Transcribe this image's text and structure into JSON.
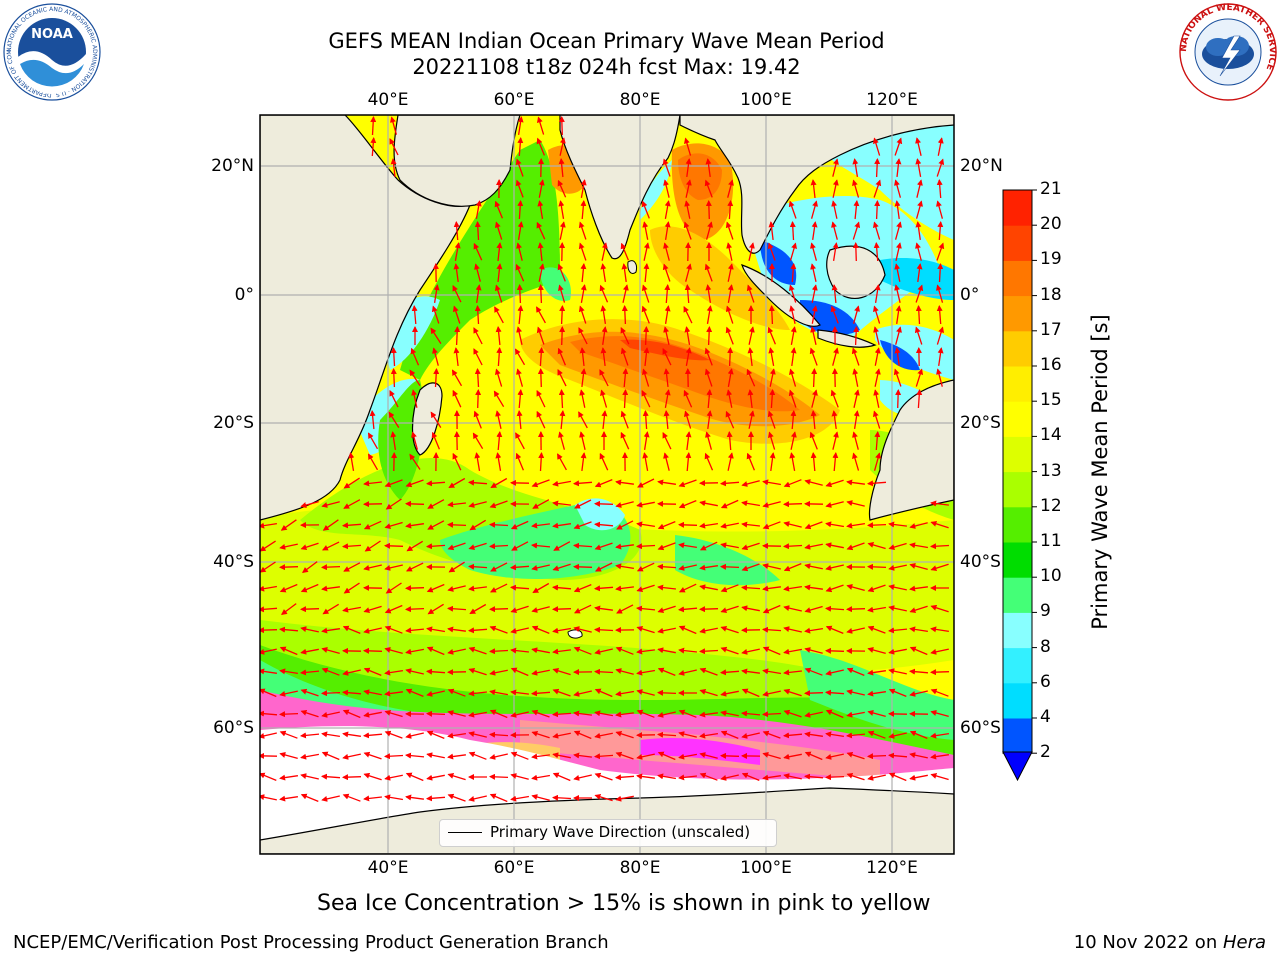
{
  "header": {
    "title_line1": "GEFS MEAN Indian Ocean Primary Wave Mean Period",
    "title_line2": "20221108 t18z 024h fcst   Max: 19.42"
  },
  "logos": {
    "noaa_text": "NOAA",
    "noaa_ring_text": "NATIONAL OCEANIC AND ATMOSPHERIC ADMINISTRATION · U.S. DEPARTMENT OF COMMERCE",
    "nws_ring_text": "NATIONAL WEATHER SERVICE"
  },
  "map": {
    "lon_ticks": [
      "40°E",
      "60°E",
      "80°E",
      "100°E",
      "120°E"
    ],
    "lat_ticks": [
      "20°N",
      "0°",
      "20°S",
      "40°S",
      "60°S"
    ],
    "land_color": "#eeecdc",
    "arrow_color": "#ff0000"
  },
  "legend": {
    "label": "Primary Wave Direction (unscaled)"
  },
  "colorbar": {
    "title": "Primary Wave Mean Period [s]",
    "tick_labels": [
      "2",
      "4",
      "6",
      "8",
      "9",
      "10",
      "11",
      "12",
      "13",
      "14",
      "15",
      "16",
      "17",
      "18",
      "19",
      "20",
      "21"
    ],
    "colors": [
      "#0055ff",
      "#00ddff",
      "#33f0ff",
      "#88ffff",
      "#44ff77",
      "#00dd00",
      "#55ee00",
      "#aaff00",
      "#ddff00",
      "#ffff00",
      "#ffee00",
      "#ffcc00",
      "#ff9900",
      "#ff7700",
      "#ff4400",
      "#ff2200",
      "#ff0000"
    ],
    "extend_color": "#0000ff"
  },
  "caption": "Sea Ice Concentration > 15% is shown in pink to yellow",
  "footer": {
    "left": "NCEP/EMC/Verification Post Processing Product Generation Branch",
    "right_date": "10 Nov 2022 on ",
    "right_host": "Hera"
  }
}
